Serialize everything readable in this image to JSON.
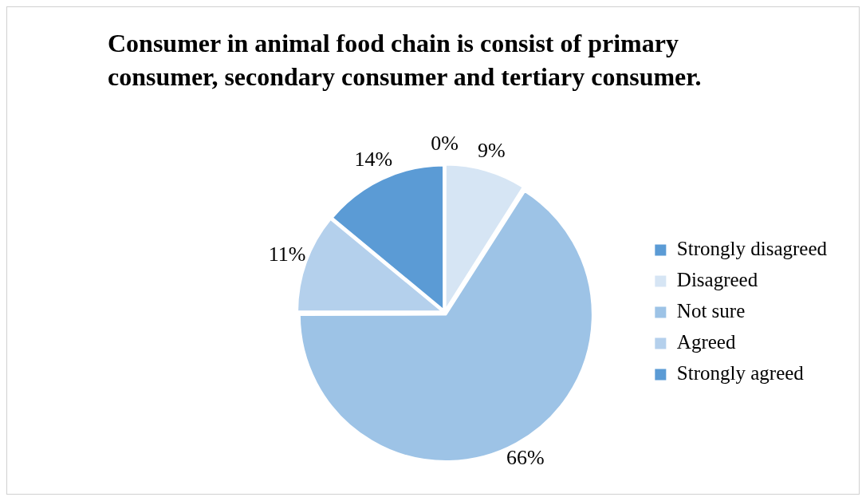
{
  "chart_data": {
    "type": "pie",
    "title": "Consumer in animal food chain is consist of primary consumer, secondary consumer and tertiary consumer.",
    "categories": [
      "Strongly disagreed",
      "Disagreed",
      "Not sure",
      "Agreed",
      "Strongly agreed"
    ],
    "values": [
      0,
      9,
      66,
      11,
      14
    ],
    "colors": [
      "#5b9bd5",
      "#d6e5f4",
      "#9dc3e6",
      "#b4d0ec",
      "#5b9bd5"
    ],
    "value_labels": [
      "0%",
      "9%",
      "66%",
      "11%",
      "14%"
    ],
    "legend": "right"
  }
}
